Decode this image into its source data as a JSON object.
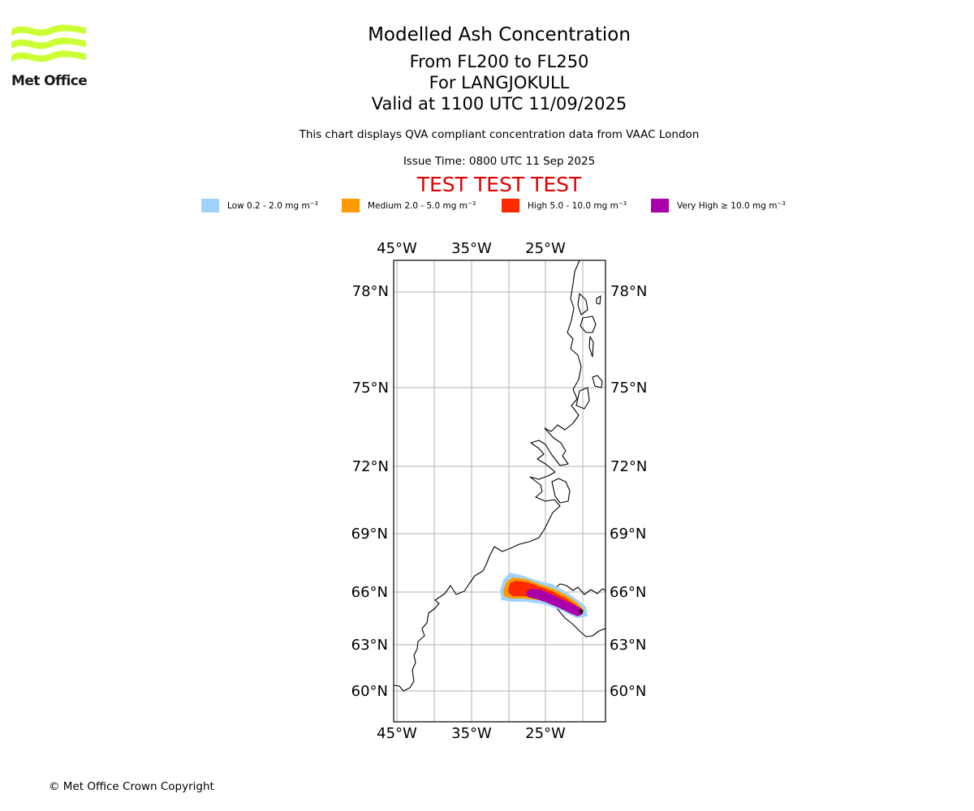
{
  "logo": {
    "text": "Met Office",
    "accent_color": "#ccff33",
    "icon": "met-office-waves-logo"
  },
  "header": {
    "title": "Modelled Ash Concentration",
    "subtitle_levels": "From FL200 to FL250",
    "subtitle_volcano": "For LANGJOKULL",
    "subtitle_valid": "Valid at 1100 UTC 11/09/2025",
    "qva_note": "This chart displays QVA compliant concentration data from VAAC London",
    "issue_time": "Issue Time: 0800 UTC 11 Sep 2025",
    "test_banner": "TEST TEST TEST",
    "test_color": "#e00000"
  },
  "legend": [
    {
      "label": "Low 0.2 - 2.0 mg m",
      "exp": "−3",
      "color": "#9fd3fb"
    },
    {
      "label": "Medium 2.0 - 5.0 mg m",
      "exp": "−3",
      "color": "#ff9a00"
    },
    {
      "label": "High 5.0 - 10.0 mg m",
      "exp": "−3",
      "color": "#ff2a00"
    },
    {
      "label": "Very High  ≥  10.0 mg m",
      "exp": "−3",
      "color": "#aa00aa"
    }
  ],
  "map": {
    "lon_labels": [
      "45°W",
      "35°W",
      "25°W"
    ],
    "lat_labels": [
      "78°N",
      "75°N",
      "72°N",
      "69°N",
      "66°N",
      "63°N",
      "60°N"
    ],
    "lon_range": [
      -45.5,
      -17
    ],
    "lat_range": [
      58.5,
      79
    ],
    "grid": true
  },
  "footer": {
    "copyright": "© Met Office Crown Copyright"
  }
}
